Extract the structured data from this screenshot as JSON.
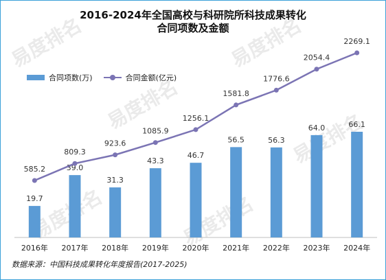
{
  "chart_data": {
    "type": "bar",
    "title_line1": "2016-2024年全国高校与科研院所科技成果转化",
    "title_line2": "合同项数及金额",
    "categories": [
      "2016年",
      "2017年",
      "2018年",
      "2019年",
      "2020年",
      "2021年",
      "2022年",
      "2023年",
      "2024年"
    ],
    "series": [
      {
        "name": "合同项数(万)",
        "type": "bar",
        "values": [
          19.7,
          39.0,
          31.3,
          43.3,
          46.7,
          56.5,
          56.3,
          64.0,
          66.1
        ],
        "labels": [
          "19.7",
          "39.0",
          "31.3",
          "43.3",
          "46.7",
          "56.5",
          "56.3",
          "64.0",
          "66.1"
        ]
      },
      {
        "name": "合同金额(亿元)",
        "type": "line",
        "values": [
          585.2,
          809.3,
          923.6,
          1085.9,
          1256.1,
          1581.8,
          1776.6,
          2054.4,
          2269.1
        ],
        "labels": [
          "585.2",
          "809.3",
          "923.6",
          "1085.9",
          "1256.1",
          "1581.8",
          "1776.6",
          "2054.4",
          "2269.1"
        ]
      }
    ],
    "legend_position": "top-left",
    "grid": false
  },
  "source": "数据来源：中国科技成果转化年度报告(2017-2025)",
  "watermark_text": "易度排名",
  "colors": {
    "bar": "#5b9bd5",
    "line": "#7b74b4",
    "border": "#3aa0d8"
  }
}
